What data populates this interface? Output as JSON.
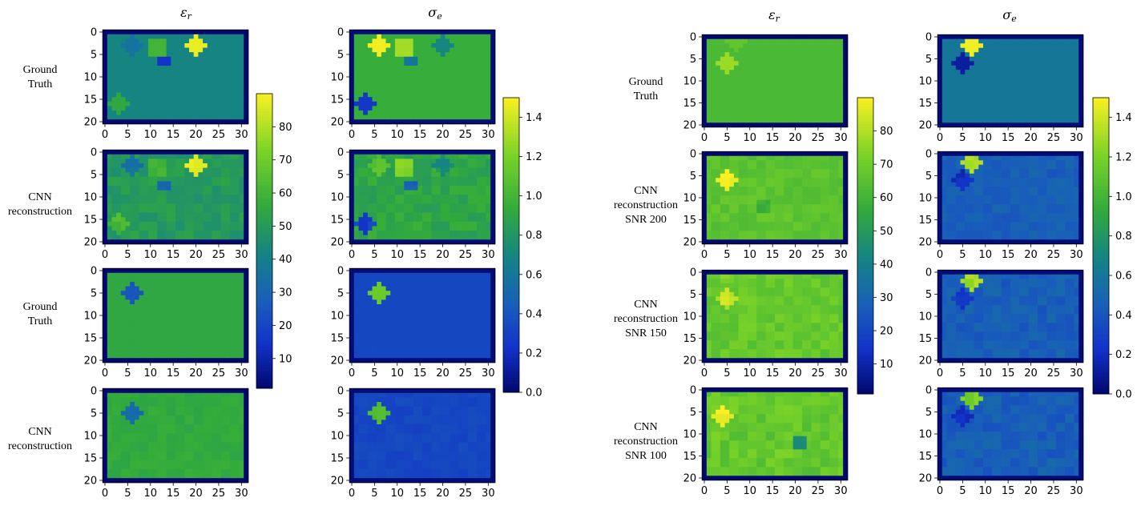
{
  "chart_data": [
    {
      "type": "heatmap",
      "panel": "left",
      "column_titles": [
        "εr",
        "σe"
      ],
      "column_title_parts": [
        {
          "base": "ε",
          "sub": "r"
        },
        {
          "base": "σ",
          "sub": "e"
        }
      ],
      "row_labels": [
        [
          "Ground",
          "Truth"
        ],
        [
          "CNN",
          "reconstruction"
        ],
        [
          "Ground",
          "Truth"
        ],
        [
          "CNN",
          "reconstruction"
        ]
      ],
      "x_ticks": [
        0,
        5,
        10,
        15,
        20,
        25,
        30
      ],
      "y_ticks": [
        0,
        5,
        10,
        15,
        20
      ],
      "xlim": [
        0,
        31
      ],
      "ylim": [
        0,
        20
      ],
      "colorbars": [
        {
          "name": "εr",
          "range": [
            1,
            90
          ],
          "ticks": [
            10,
            20,
            30,
            40,
            50,
            60,
            70,
            80
          ]
        },
        {
          "name": "σe",
          "range": [
            0,
            1.5
          ],
          "ticks": [
            "0.0",
            "0.2",
            "0.4",
            "0.6",
            "0.8",
            "1.0",
            "1.2",
            "1.4"
          ]
        }
      ],
      "maps": [
        {
          "row": 0,
          "quantity": "εr",
          "background": 42,
          "border": 1,
          "inclusions": [
            {
              "shape": "square",
              "cx": 11.5,
              "cy": 3.5,
              "r": 2,
              "value": 60
            },
            {
              "shape": "square",
              "cx": 13,
              "cy": 6.5,
              "r": 1,
              "value": 15
            },
            {
              "shape": "circle",
              "cx": 20,
              "cy": 3,
              "r": 2,
              "value": 88
            },
            {
              "shape": "circle",
              "cx": 6,
              "cy": 3,
              "r": 2,
              "value": 35
            },
            {
              "shape": "circle",
              "cx": 3,
              "cy": 16,
              "r": 2,
              "value": 55
            }
          ]
        },
        {
          "row": 0,
          "quantity": "σe",
          "background": 0.95,
          "border": 0.02,
          "inclusions": [
            {
              "shape": "circle",
              "cx": 6,
              "cy": 3,
              "r": 2,
              "value": 1.48
            },
            {
              "shape": "square",
              "cx": 11.5,
              "cy": 3.5,
              "r": 2,
              "value": 1.3
            },
            {
              "shape": "square",
              "cx": 13,
              "cy": 6.5,
              "r": 1,
              "value": 0.6
            },
            {
              "shape": "circle",
              "cx": 20,
              "cy": 3,
              "r": 2,
              "value": 0.7
            },
            {
              "shape": "circle",
              "cx": 3,
              "cy": 16,
              "r": 2,
              "value": 0.25
            }
          ]
        },
        {
          "row": 1,
          "quantity": "εr",
          "background": 50,
          "border": 1,
          "noise": 4,
          "inclusions": [
            {
              "shape": "circle",
              "cx": 6,
              "cy": 3,
              "r": 2,
              "value": 35
            },
            {
              "shape": "square",
              "cx": 11.5,
              "cy": 3.5,
              "r": 2,
              "value": 62
            },
            {
              "shape": "square",
              "cx": 13,
              "cy": 7.5,
              "r": 1,
              "value": 30
            },
            {
              "shape": "circle",
              "cx": 20,
              "cy": 3,
              "r": 2,
              "value": 88
            },
            {
              "shape": "circle",
              "cx": 3,
              "cy": 16,
              "r": 2,
              "value": 62
            }
          ]
        },
        {
          "row": 1,
          "quantity": "σe",
          "background": 0.9,
          "border": 0.02,
          "noise": 0.07,
          "inclusions": [
            {
              "shape": "circle",
              "cx": 6,
              "cy": 3,
              "r": 2,
              "value": 1.1
            },
            {
              "shape": "square",
              "cx": 11.5,
              "cy": 3.5,
              "r": 2,
              "value": 1.25
            },
            {
              "shape": "square",
              "cx": 13,
              "cy": 7.5,
              "r": 1,
              "value": 0.45
            },
            {
              "shape": "circle",
              "cx": 20,
              "cy": 3,
              "r": 2,
              "value": 0.75
            },
            {
              "shape": "circle",
              "cx": 3,
              "cy": 16,
              "r": 2,
              "value": 0.3
            }
          ]
        },
        {
          "row": 2,
          "quantity": "εr",
          "background": 55,
          "border": 1,
          "inclusions": [
            {
              "shape": "circle",
              "cx": 6,
              "cy": 5,
              "r": 2,
              "value": 25
            }
          ]
        },
        {
          "row": 2,
          "quantity": "σe",
          "background": 0.33,
          "border": 0.02,
          "inclusions": [
            {
              "shape": "circle",
              "cx": 6,
              "cy": 5,
              "r": 2,
              "value": 1.15
            }
          ]
        },
        {
          "row": 3,
          "quantity": "εr",
          "background": 56,
          "border": 1,
          "noise": 2,
          "inclusions": [
            {
              "shape": "circle",
              "cx": 6,
              "cy": 5,
              "r": 2,
              "value": 33
            }
          ]
        },
        {
          "row": 3,
          "quantity": "σe",
          "background": 0.33,
          "border": 0.02,
          "noise": 0.03,
          "inclusions": [
            {
              "shape": "circle",
              "cx": 6,
              "cy": 5,
              "r": 2,
              "value": 1.05
            }
          ]
        }
      ]
    },
    {
      "type": "heatmap",
      "panel": "right",
      "column_titles": [
        "εr",
        "σe"
      ],
      "column_title_parts": [
        {
          "base": "ε",
          "sub": "r"
        },
        {
          "base": "σ",
          "sub": "e"
        }
      ],
      "row_labels": [
        [
          "Ground",
          "Truth"
        ],
        [
          "CNN",
          "reconstruction",
          "SNR  200"
        ],
        [
          "CNN",
          "reconstruction",
          "SNR  150"
        ],
        [
          "CNN",
          "reconstruction",
          "SNR  100"
        ]
      ],
      "x_ticks": [
        0,
        5,
        10,
        15,
        20,
        25,
        30
      ],
      "y_ticks": [
        0,
        5,
        10,
        15,
        20
      ],
      "xlim": [
        0,
        31
      ],
      "ylim": [
        0,
        20
      ],
      "colorbars": [
        {
          "name": "εr",
          "range": [
            1,
            90
          ],
          "ticks": [
            10,
            20,
            30,
            40,
            50,
            60,
            70,
            80
          ]
        },
        {
          "name": "σe",
          "range": [
            0,
            1.5
          ],
          "ticks": [
            "0.0",
            "0.2",
            "0.4",
            "0.6",
            "0.8",
            "1.0",
            "1.2",
            "1.4"
          ]
        }
      ],
      "maps": [
        {
          "row": 0,
          "quantity": "εr",
          "background": 62,
          "border": 1,
          "inclusions": [
            {
              "shape": "circle",
              "cx": 5,
              "cy": 6,
              "r": 2,
              "value": 77
            },
            {
              "shape": "circle",
              "cx": 7,
              "cy": 1,
              "r": 2,
              "value": 67
            }
          ]
        },
        {
          "row": 0,
          "quantity": "σe",
          "background": 0.6,
          "border": 0.02,
          "inclusions": [
            {
              "shape": "circle",
              "cx": 7,
              "cy": 2,
              "r": 2,
              "value": 1.48
            },
            {
              "shape": "circle",
              "cx": 5,
              "cy": 6,
              "r": 2,
              "value": 0.12
            }
          ]
        },
        {
          "row": 1,
          "quantity": "εr",
          "background": 66,
          "border": 1,
          "noise": 3,
          "inclusions": [
            {
              "shape": "circle",
              "cx": 5,
              "cy": 6,
              "r": 2,
              "value": 89
            },
            {
              "shape": "square",
              "cx": 13,
              "cy": 12,
              "r": 1,
              "value": 58
            }
          ]
        },
        {
          "row": 1,
          "quantity": "σe",
          "background": 0.45,
          "border": 0.02,
          "noise": 0.05,
          "inclusions": [
            {
              "shape": "circle",
              "cx": 7,
              "cy": 2,
              "r": 2,
              "value": 1.3
            },
            {
              "shape": "circle",
              "cx": 5,
              "cy": 6,
              "r": 2,
              "value": 0.2
            }
          ]
        },
        {
          "row": 2,
          "quantity": "εr",
          "background": 68,
          "border": 1,
          "noise": 4,
          "inclusions": [
            {
              "shape": "circle",
              "cx": 5,
              "cy": 6,
              "r": 2,
              "value": 82
            },
            {
              "shape": "square",
              "cx": 5,
              "cy": 1,
              "r": 1,
              "value": 72
            }
          ]
        },
        {
          "row": 2,
          "quantity": "σe",
          "background": 0.45,
          "border": 0.02,
          "noise": 0.06,
          "inclusions": [
            {
              "shape": "circle",
              "cx": 7,
              "cy": 2,
              "r": 2,
              "value": 1.3
            },
            {
              "shape": "circle",
              "cx": 5,
              "cy": 6,
              "r": 2,
              "value": 0.25
            }
          ]
        },
        {
          "row": 3,
          "quantity": "εr",
          "background": 68,
          "border": 1,
          "noise": 5,
          "inclusions": [
            {
              "shape": "circle",
              "cx": 4,
              "cy": 6,
              "r": 2,
              "value": 89
            },
            {
              "shape": "square",
              "cx": 21,
              "cy": 12,
              "r": 1,
              "value": 45
            }
          ]
        },
        {
          "row": 3,
          "quantity": "σe",
          "background": 0.45,
          "border": 0.02,
          "noise": 0.07,
          "inclusions": [
            {
              "shape": "circle",
              "cx": 7,
              "cy": 2,
              "r": 2,
              "value": 1.2
            },
            {
              "shape": "circle",
              "cx": 5,
              "cy": 6,
              "r": 2,
              "value": 0.25
            }
          ]
        }
      ]
    }
  ]
}
